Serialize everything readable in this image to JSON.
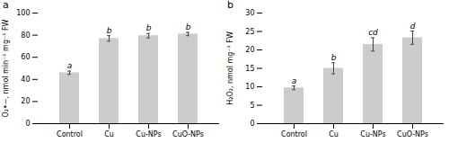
{
  "chart_data": [
    {
      "type": "bar",
      "title": "a",
      "categories": [
        "Control",
        "Cu",
        "Cu-NPs",
        "CuO-NPs"
      ],
      "values": [
        46,
        77,
        79.5,
        81
      ],
      "errors": [
        1.5,
        2.5,
        2.0,
        1.5
      ],
      "letters": [
        "a",
        "b",
        "b",
        "b"
      ],
      "ylabel": "O₂•−, nmol min⁻¹ mg⁻¹ FW",
      "ylim": [
        0,
        100
      ],
      "yticks": [
        0,
        20,
        40,
        60,
        80,
        100
      ],
      "color": "#cccccc"
    },
    {
      "type": "bar",
      "title": "b",
      "categories": [
        "Control",
        "Cu",
        "Cu-NPs",
        "CuO-NPs"
      ],
      "values": [
        9.7,
        15.0,
        21.5,
        23.3
      ],
      "errors": [
        0.5,
        1.5,
        1.8,
        1.8
      ],
      "letters": [
        "a",
        "b",
        "cd",
        "d"
      ],
      "ylabel": "H₂O₂, nmol mg⁻¹ FW",
      "ylim": [
        0,
        30
      ],
      "yticks": [
        0,
        5,
        10,
        15,
        20,
        25,
        30
      ],
      "color": "#cccccc"
    }
  ]
}
